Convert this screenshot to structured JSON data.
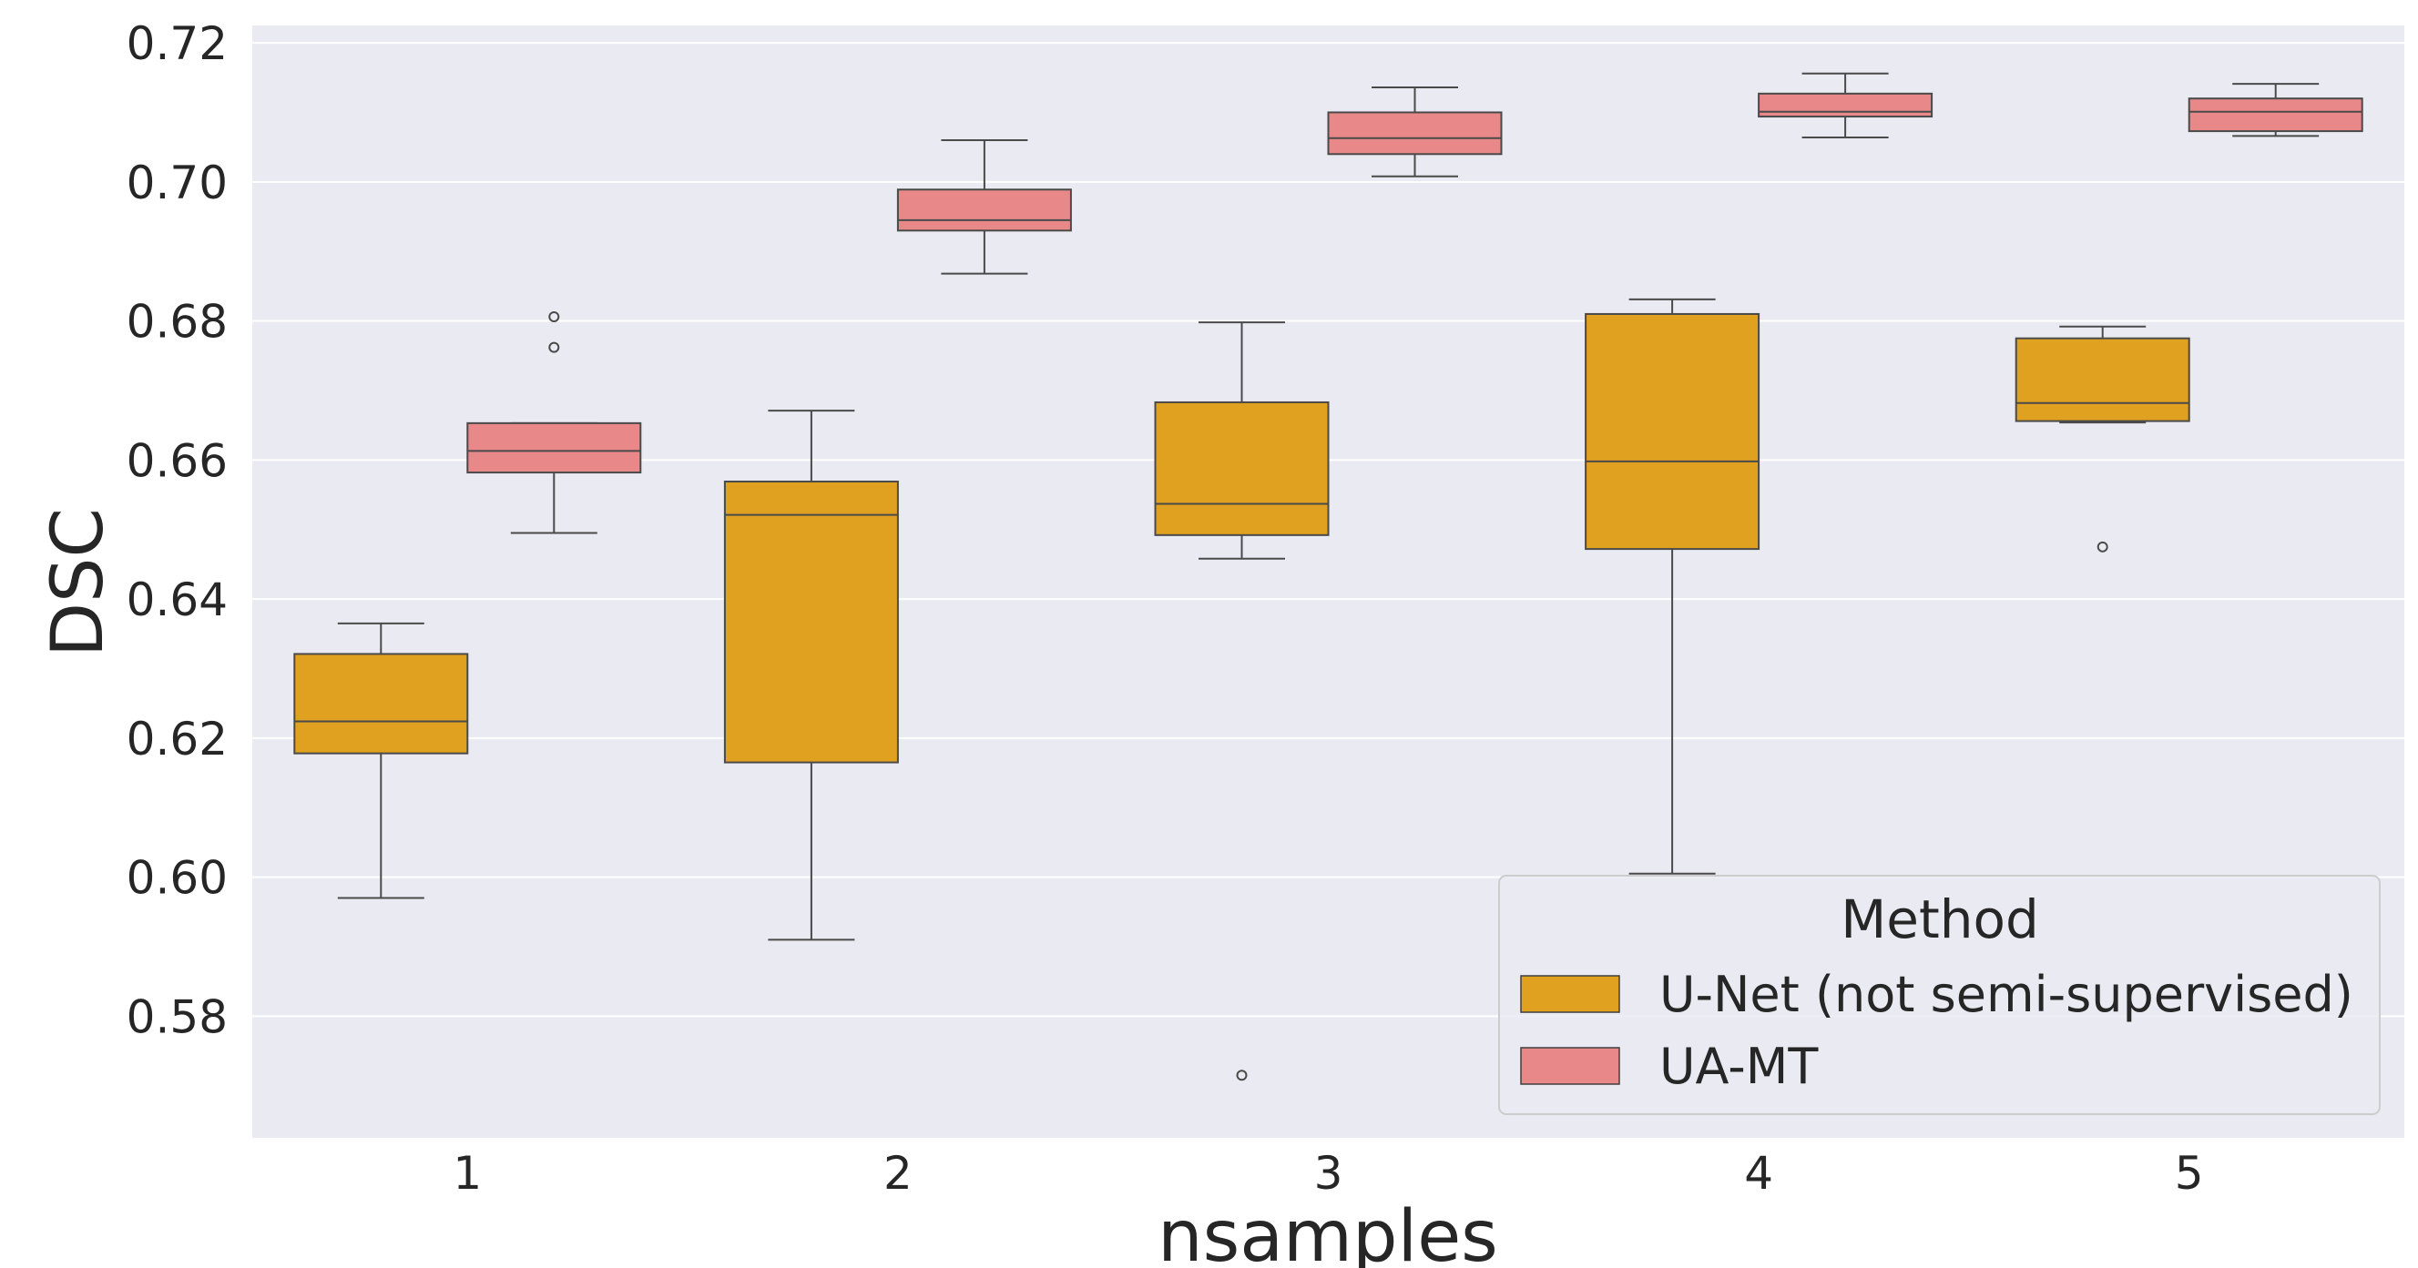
{
  "chart_data": {
    "type": "box",
    "xlabel": "nsamples",
    "ylabel": "DSC",
    "categories": [
      "1",
      "2",
      "3",
      "4",
      "5"
    ],
    "ylim": [
      0.5625,
      0.7225
    ],
    "yticks": [
      "0.58",
      "0.60",
      "0.62",
      "0.64",
      "0.66",
      "0.68",
      "0.70",
      "0.72"
    ],
    "grid": true,
    "legend": {
      "title": "Method",
      "placement": "lower-right"
    },
    "series": [
      {
        "name": "U-Net (not semi-supervised)",
        "color": "#E0A020",
        "boxes": [
          {
            "category": "1",
            "whisker_low": 0.597,
            "q1": 0.6178,
            "median": 0.6224,
            "q3": 0.6321,
            "whisker_high": 0.6365,
            "outliers": []
          },
          {
            "category": "2",
            "whisker_low": 0.591,
            "q1": 0.6165,
            "median": 0.6521,
            "q3": 0.6569,
            "whisker_high": 0.6671,
            "outliers": []
          },
          {
            "category": "3",
            "whisker_low": 0.6458,
            "q1": 0.6492,
            "median": 0.6537,
            "q3": 0.6683,
            "whisker_high": 0.6798,
            "outliers": [
              0.5715
            ]
          },
          {
            "category": "4",
            "whisker_low": 0.6005,
            "q1": 0.6472,
            "median": 0.6598,
            "q3": 0.681,
            "whisker_high": 0.6831,
            "outliers": []
          },
          {
            "category": "5",
            "whisker_low": 0.6654,
            "q1": 0.6656,
            "median": 0.6682,
            "q3": 0.6775,
            "whisker_high": 0.6792,
            "outliers": [
              0.6475
            ]
          }
        ]
      },
      {
        "name": "UA-MT",
        "color": "#E88888",
        "boxes": [
          {
            "category": "1",
            "whisker_low": 0.6495,
            "q1": 0.6582,
            "median": 0.6613,
            "q3": 0.6653,
            "whisker_high": 0.6653,
            "outliers": [
              0.6762,
              0.6806
            ]
          },
          {
            "category": "2",
            "whisker_low": 0.6868,
            "q1": 0.693,
            "median": 0.6945,
            "q3": 0.6989,
            "whisker_high": 0.706,
            "outliers": []
          },
          {
            "category": "3",
            "whisker_low": 0.7008,
            "q1": 0.704,
            "median": 0.7063,
            "q3": 0.71,
            "whisker_high": 0.7136,
            "outliers": []
          },
          {
            "category": "4",
            "whisker_low": 0.7064,
            "q1": 0.7094,
            "median": 0.7101,
            "q3": 0.7127,
            "whisker_high": 0.7156,
            "outliers": []
          },
          {
            "category": "5",
            "whisker_low": 0.7066,
            "q1": 0.7073,
            "median": 0.7101,
            "q3": 0.712,
            "whisker_high": 0.7141,
            "outliers": []
          }
        ]
      }
    ]
  }
}
